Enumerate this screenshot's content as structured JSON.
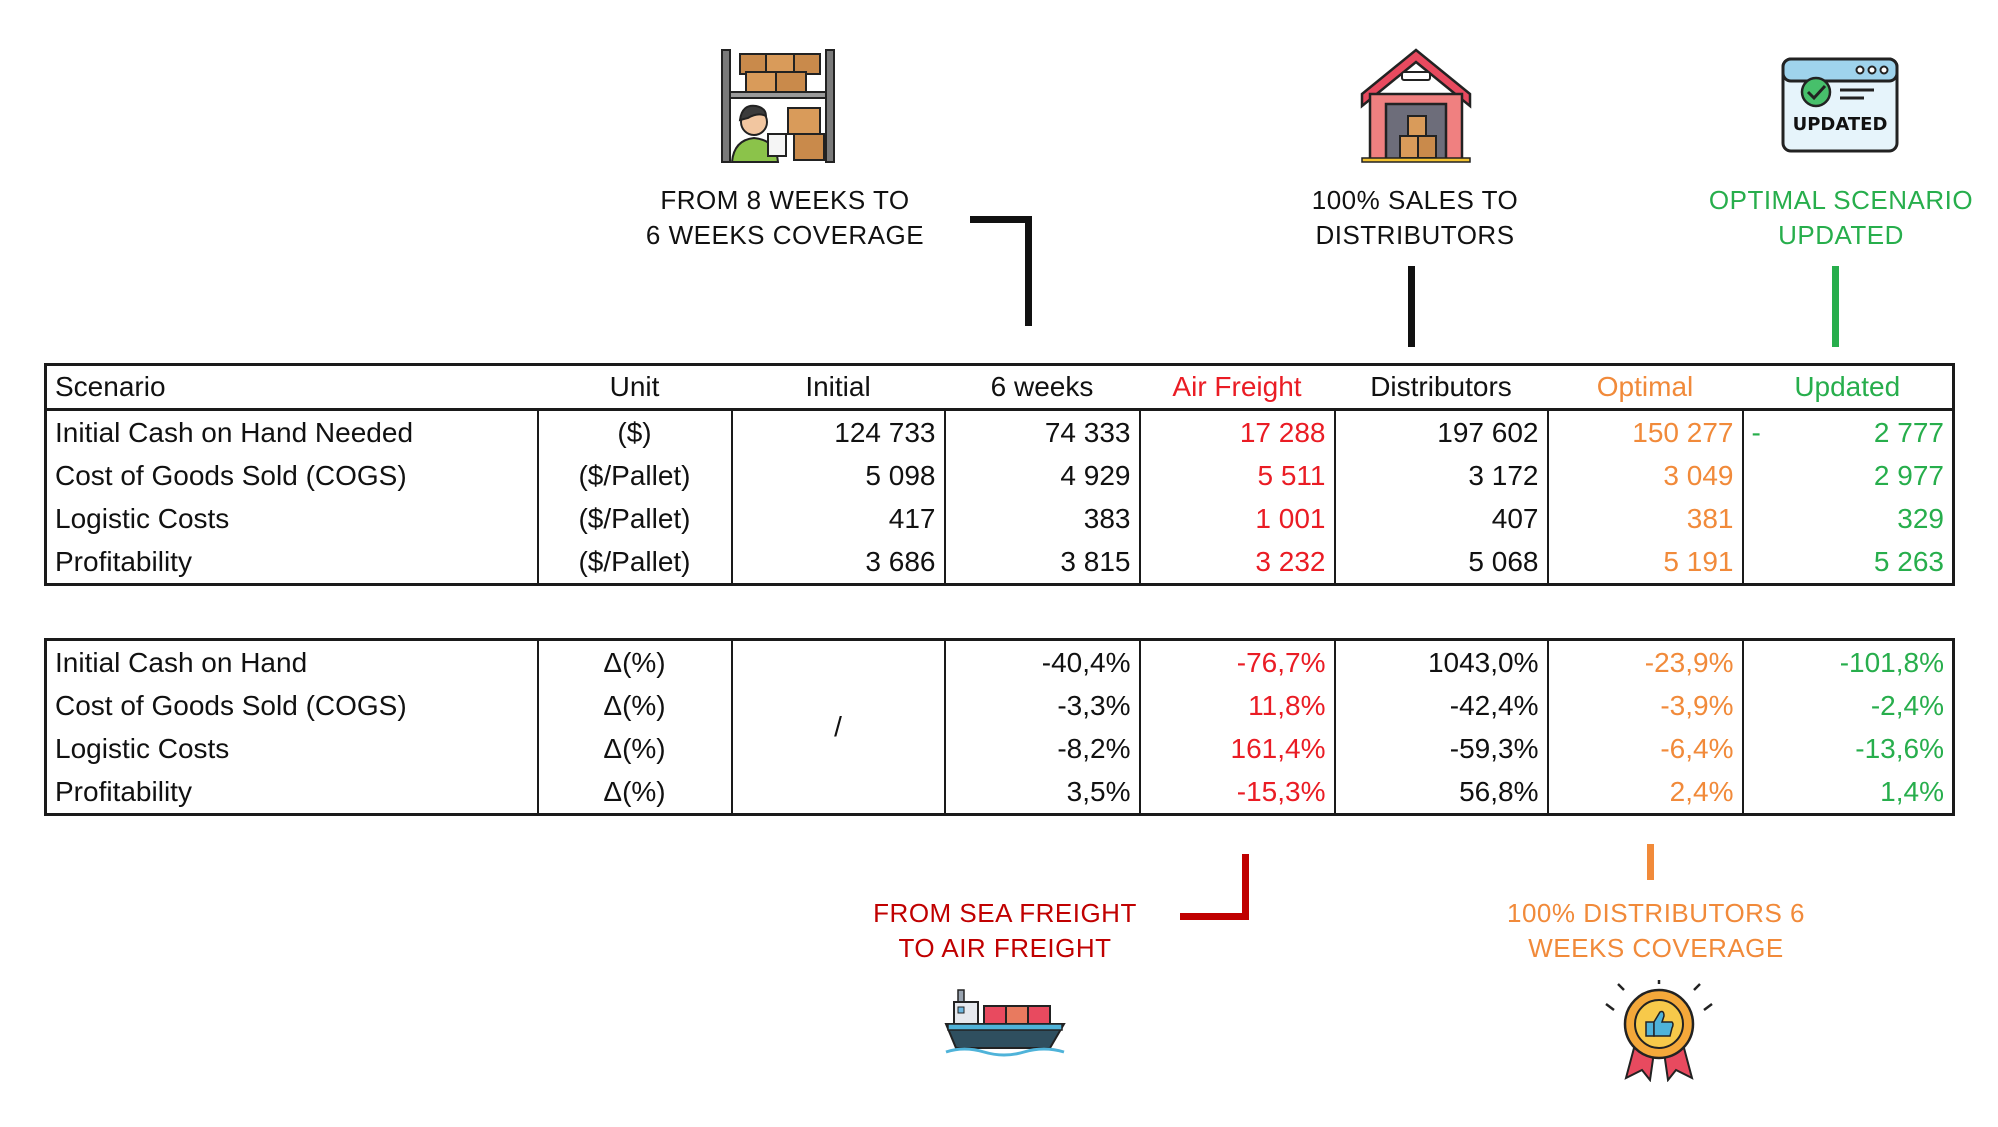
{
  "callouts": {
    "weeks": [
      "FROM 8 WEEKS TO",
      "6 WEEKS COVERAGE"
    ],
    "sales": [
      "100% SALES TO",
      "DISTRIBUTORS"
    ],
    "updated": [
      "OPTIMAL SCENARIO",
      "UPDATED"
    ],
    "air": [
      "FROM SEA FREIGHT",
      "TO AIR FREIGHT"
    ],
    "distributors": [
      "100% DISTRIBUTORS 6",
      "WEEKS COVERAGE"
    ]
  },
  "icons": {
    "warehouse_worker": "warehouse-worker-icon",
    "warehouse": "warehouse-icon",
    "updated": "updated-browser-icon",
    "updated_text": "UPDATED",
    "ship": "cargo-ship-icon",
    "badge": "quality-badge-icon"
  },
  "colors": {
    "air": "#ea1c24",
    "optimal": "#f18a3a",
    "updated": "#27ae4c",
    "dark_red_callout": "#c00000"
  },
  "table1": {
    "headers": [
      "Scenario",
      "Unit",
      "Initial",
      "6 weeks",
      "Air Freight",
      "Distributors",
      "Optimal",
      "Updated"
    ],
    "rows": [
      {
        "label": "Initial Cash on Hand Needed",
        "unit": "($)",
        "initial": "124 733",
        "weeks": "74 333",
        "air": "17 288",
        "dist": "197 602",
        "optimal": "150 277",
        "updated_prefix": "-",
        "updated": "2 777"
      },
      {
        "label": "Cost of Goods Sold (COGS)",
        "unit": "($/Pallet)",
        "initial": "5 098",
        "weeks": "4 929",
        "air": "5 511",
        "dist": "3 172",
        "optimal": "3 049",
        "updated": "2 977"
      },
      {
        "label": "Logistic Costs",
        "unit": "($/Pallet)",
        "initial": "417",
        "weeks": "383",
        "air": "1 001",
        "dist": "407",
        "optimal": "381",
        "updated": "329"
      },
      {
        "label": "Profitability",
        "unit": "($/Pallet)",
        "initial": "3 686",
        "weeks": "3 815",
        "air": "3 232",
        "dist": "5 068",
        "optimal": "5 191",
        "updated": "5 263"
      }
    ]
  },
  "table2": {
    "initial_placeholder": "/",
    "rows": [
      {
        "label": "Initial Cash on Hand",
        "unit": "Δ(%)",
        "weeks": "-40,4%",
        "air": "-76,7%",
        "dist": "1043,0%",
        "optimal": "-23,9%",
        "updated": "-101,8%"
      },
      {
        "label": "Cost of Goods Sold (COGS)",
        "unit": "Δ(%)",
        "weeks": "-3,3%",
        "air": "11,8%",
        "dist": "-42,4%",
        "optimal": "-3,9%",
        "updated": "-2,4%"
      },
      {
        "label": "Logistic Costs",
        "unit": "Δ(%)",
        "weeks": "-8,2%",
        "air": "161,4%",
        "dist": "-59,3%",
        "optimal": "-6,4%",
        "updated": "-13,6%"
      },
      {
        "label": "Profitability",
        "unit": "Δ(%)",
        "weeks": "3,5%",
        "air": "-15,3%",
        "dist": "56,8%",
        "optimal": "2,4%",
        "updated": "1,4%"
      }
    ]
  }
}
